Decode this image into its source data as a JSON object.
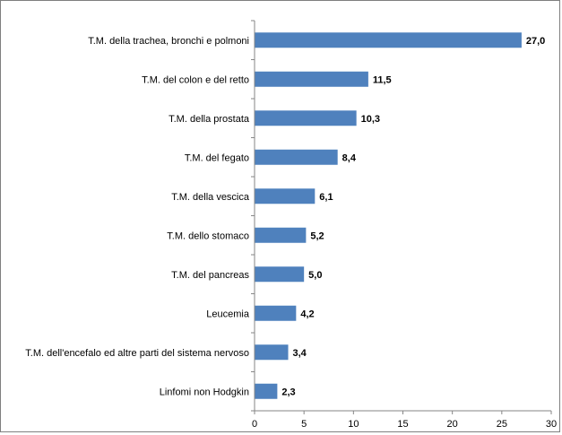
{
  "chart_data": {
    "type": "bar",
    "orientation": "horizontal",
    "categories": [
      "T.M. della trachea, bronchi e polmoni",
      "T.M. del colon e del retto",
      "T.M. della prostata",
      "T.M. del fegato",
      "T.M. della vescica",
      "T.M. dello stomaco",
      "T.M. del pancreas",
      "Leucemia",
      "T.M. dell'encefalo ed altre parti del sistema nervoso",
      "Linfomi non Hodgkin"
    ],
    "values": [
      27.0,
      11.5,
      10.3,
      8.4,
      6.1,
      5.2,
      5.0,
      4.2,
      3.4,
      2.3
    ],
    "value_labels": [
      "27,0",
      "11,5",
      "10,3",
      "8,4",
      "6,1",
      "5,2",
      "5,0",
      "4,2",
      "3,4",
      "2,3"
    ],
    "xlim": [
      0,
      30
    ],
    "xticks": [
      "0",
      "5",
      "10",
      "15",
      "20",
      "25",
      "30"
    ],
    "bar_color": "#4f81bd",
    "grid": false,
    "legend": "none"
  }
}
